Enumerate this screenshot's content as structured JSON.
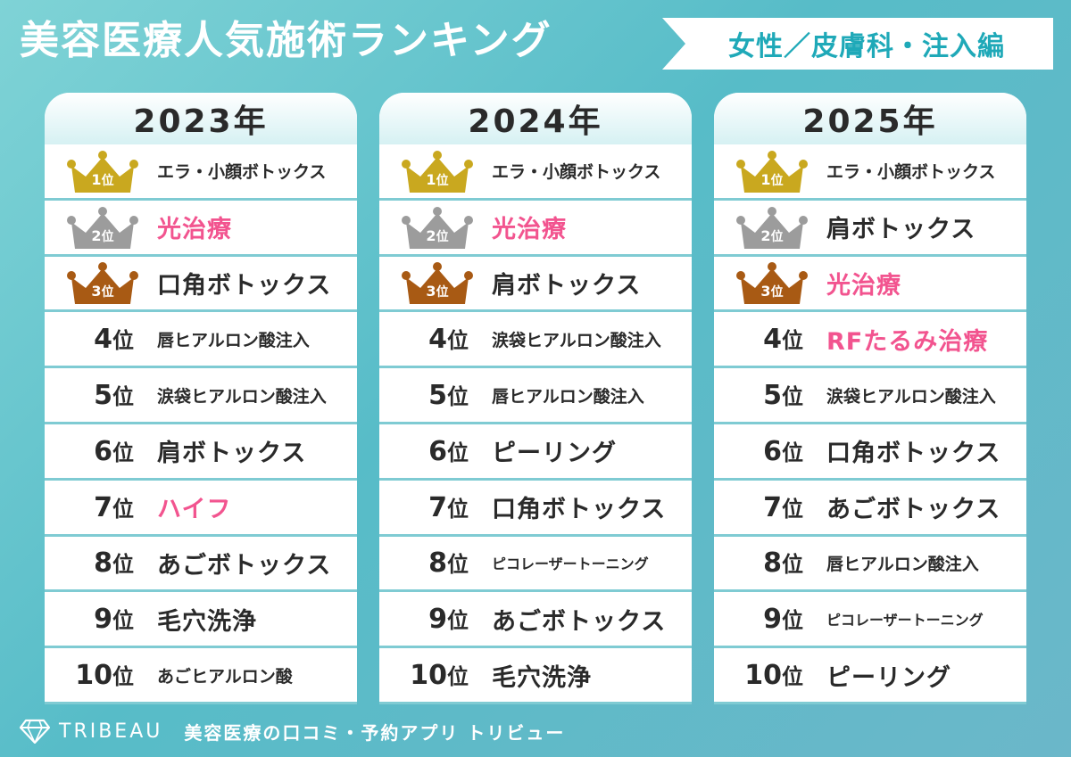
{
  "title": "美容医療人気施術ランキング",
  "subtitle": "女性／皮膚科・注入編",
  "rank_suffix": "位",
  "colors": {
    "gold": "#c9a81f",
    "silver": "#9c9c9c",
    "bronze": "#a85a14",
    "highlight": "#f2548f",
    "accent": "#1fa9b8"
  },
  "columns": [
    {
      "year": "2023年",
      "items": [
        {
          "rank": "1",
          "label": "エラ・小顔ボトックス",
          "size": "sm",
          "highlight": false
        },
        {
          "rank": "2",
          "label": "光治療",
          "size": "big",
          "highlight": true
        },
        {
          "rank": "3",
          "label": "口角ボトックス",
          "size": "big",
          "highlight": false
        },
        {
          "rank": "4",
          "label": "唇ヒアルロン酸注入",
          "size": "sm",
          "highlight": false
        },
        {
          "rank": "5",
          "label": "涙袋ヒアルロン酸注入",
          "size": "sm",
          "highlight": false
        },
        {
          "rank": "6",
          "label": "肩ボトックス",
          "size": "big",
          "highlight": false
        },
        {
          "rank": "7",
          "label": "ハイフ",
          "size": "big",
          "highlight": true
        },
        {
          "rank": "8",
          "label": "あごボトックス",
          "size": "big",
          "highlight": false
        },
        {
          "rank": "9",
          "label": "毛穴洗浄",
          "size": "big",
          "highlight": false
        },
        {
          "rank": "10",
          "label": "あごヒアルロン酸",
          "size": "sm",
          "highlight": false
        }
      ]
    },
    {
      "year": "2024年",
      "items": [
        {
          "rank": "1",
          "label": "エラ・小顔ボトックス",
          "size": "sm",
          "highlight": false
        },
        {
          "rank": "2",
          "label": "光治療",
          "size": "big",
          "highlight": true
        },
        {
          "rank": "3",
          "label": "肩ボトックス",
          "size": "big",
          "highlight": false
        },
        {
          "rank": "4",
          "label": "涙袋ヒアルロン酸注入",
          "size": "sm",
          "highlight": false
        },
        {
          "rank": "5",
          "label": "唇ヒアルロン酸注入",
          "size": "sm",
          "highlight": false
        },
        {
          "rank": "6",
          "label": "ピーリング",
          "size": "big",
          "highlight": false
        },
        {
          "rank": "7",
          "label": "口角ボトックス",
          "size": "big",
          "highlight": false
        },
        {
          "rank": "8",
          "label": "ピコレーザートーニング",
          "size": "xs",
          "highlight": false
        },
        {
          "rank": "9",
          "label": "あごボトックス",
          "size": "big",
          "highlight": false
        },
        {
          "rank": "10",
          "label": "毛穴洗浄",
          "size": "big",
          "highlight": false
        }
      ]
    },
    {
      "year": "2025年",
      "items": [
        {
          "rank": "1",
          "label": "エラ・小顔ボトックス",
          "size": "sm",
          "highlight": false
        },
        {
          "rank": "2",
          "label": "肩ボトックス",
          "size": "big",
          "highlight": false
        },
        {
          "rank": "3",
          "label": "光治療",
          "size": "big",
          "highlight": true
        },
        {
          "rank": "4",
          "label": "RFたるみ治療",
          "size": "big",
          "highlight": true
        },
        {
          "rank": "5",
          "label": "涙袋ヒアルロン酸注入",
          "size": "sm",
          "highlight": false
        },
        {
          "rank": "6",
          "label": "口角ボトックス",
          "size": "big",
          "highlight": false
        },
        {
          "rank": "7",
          "label": "あごボトックス",
          "size": "big",
          "highlight": false
        },
        {
          "rank": "8",
          "label": "唇ヒアルロン酸注入",
          "size": "sm",
          "highlight": false
        },
        {
          "rank": "9",
          "label": "ピコレーザートーニング",
          "size": "xs",
          "highlight": false
        },
        {
          "rank": "10",
          "label": "ピーリング",
          "size": "big",
          "highlight": false
        }
      ]
    }
  ],
  "footer": {
    "logo_icon": "diamond-icon",
    "brand": "TRIBEAU",
    "tagline": "美容医療の口コミ・予約アプリ トリビュー"
  }
}
